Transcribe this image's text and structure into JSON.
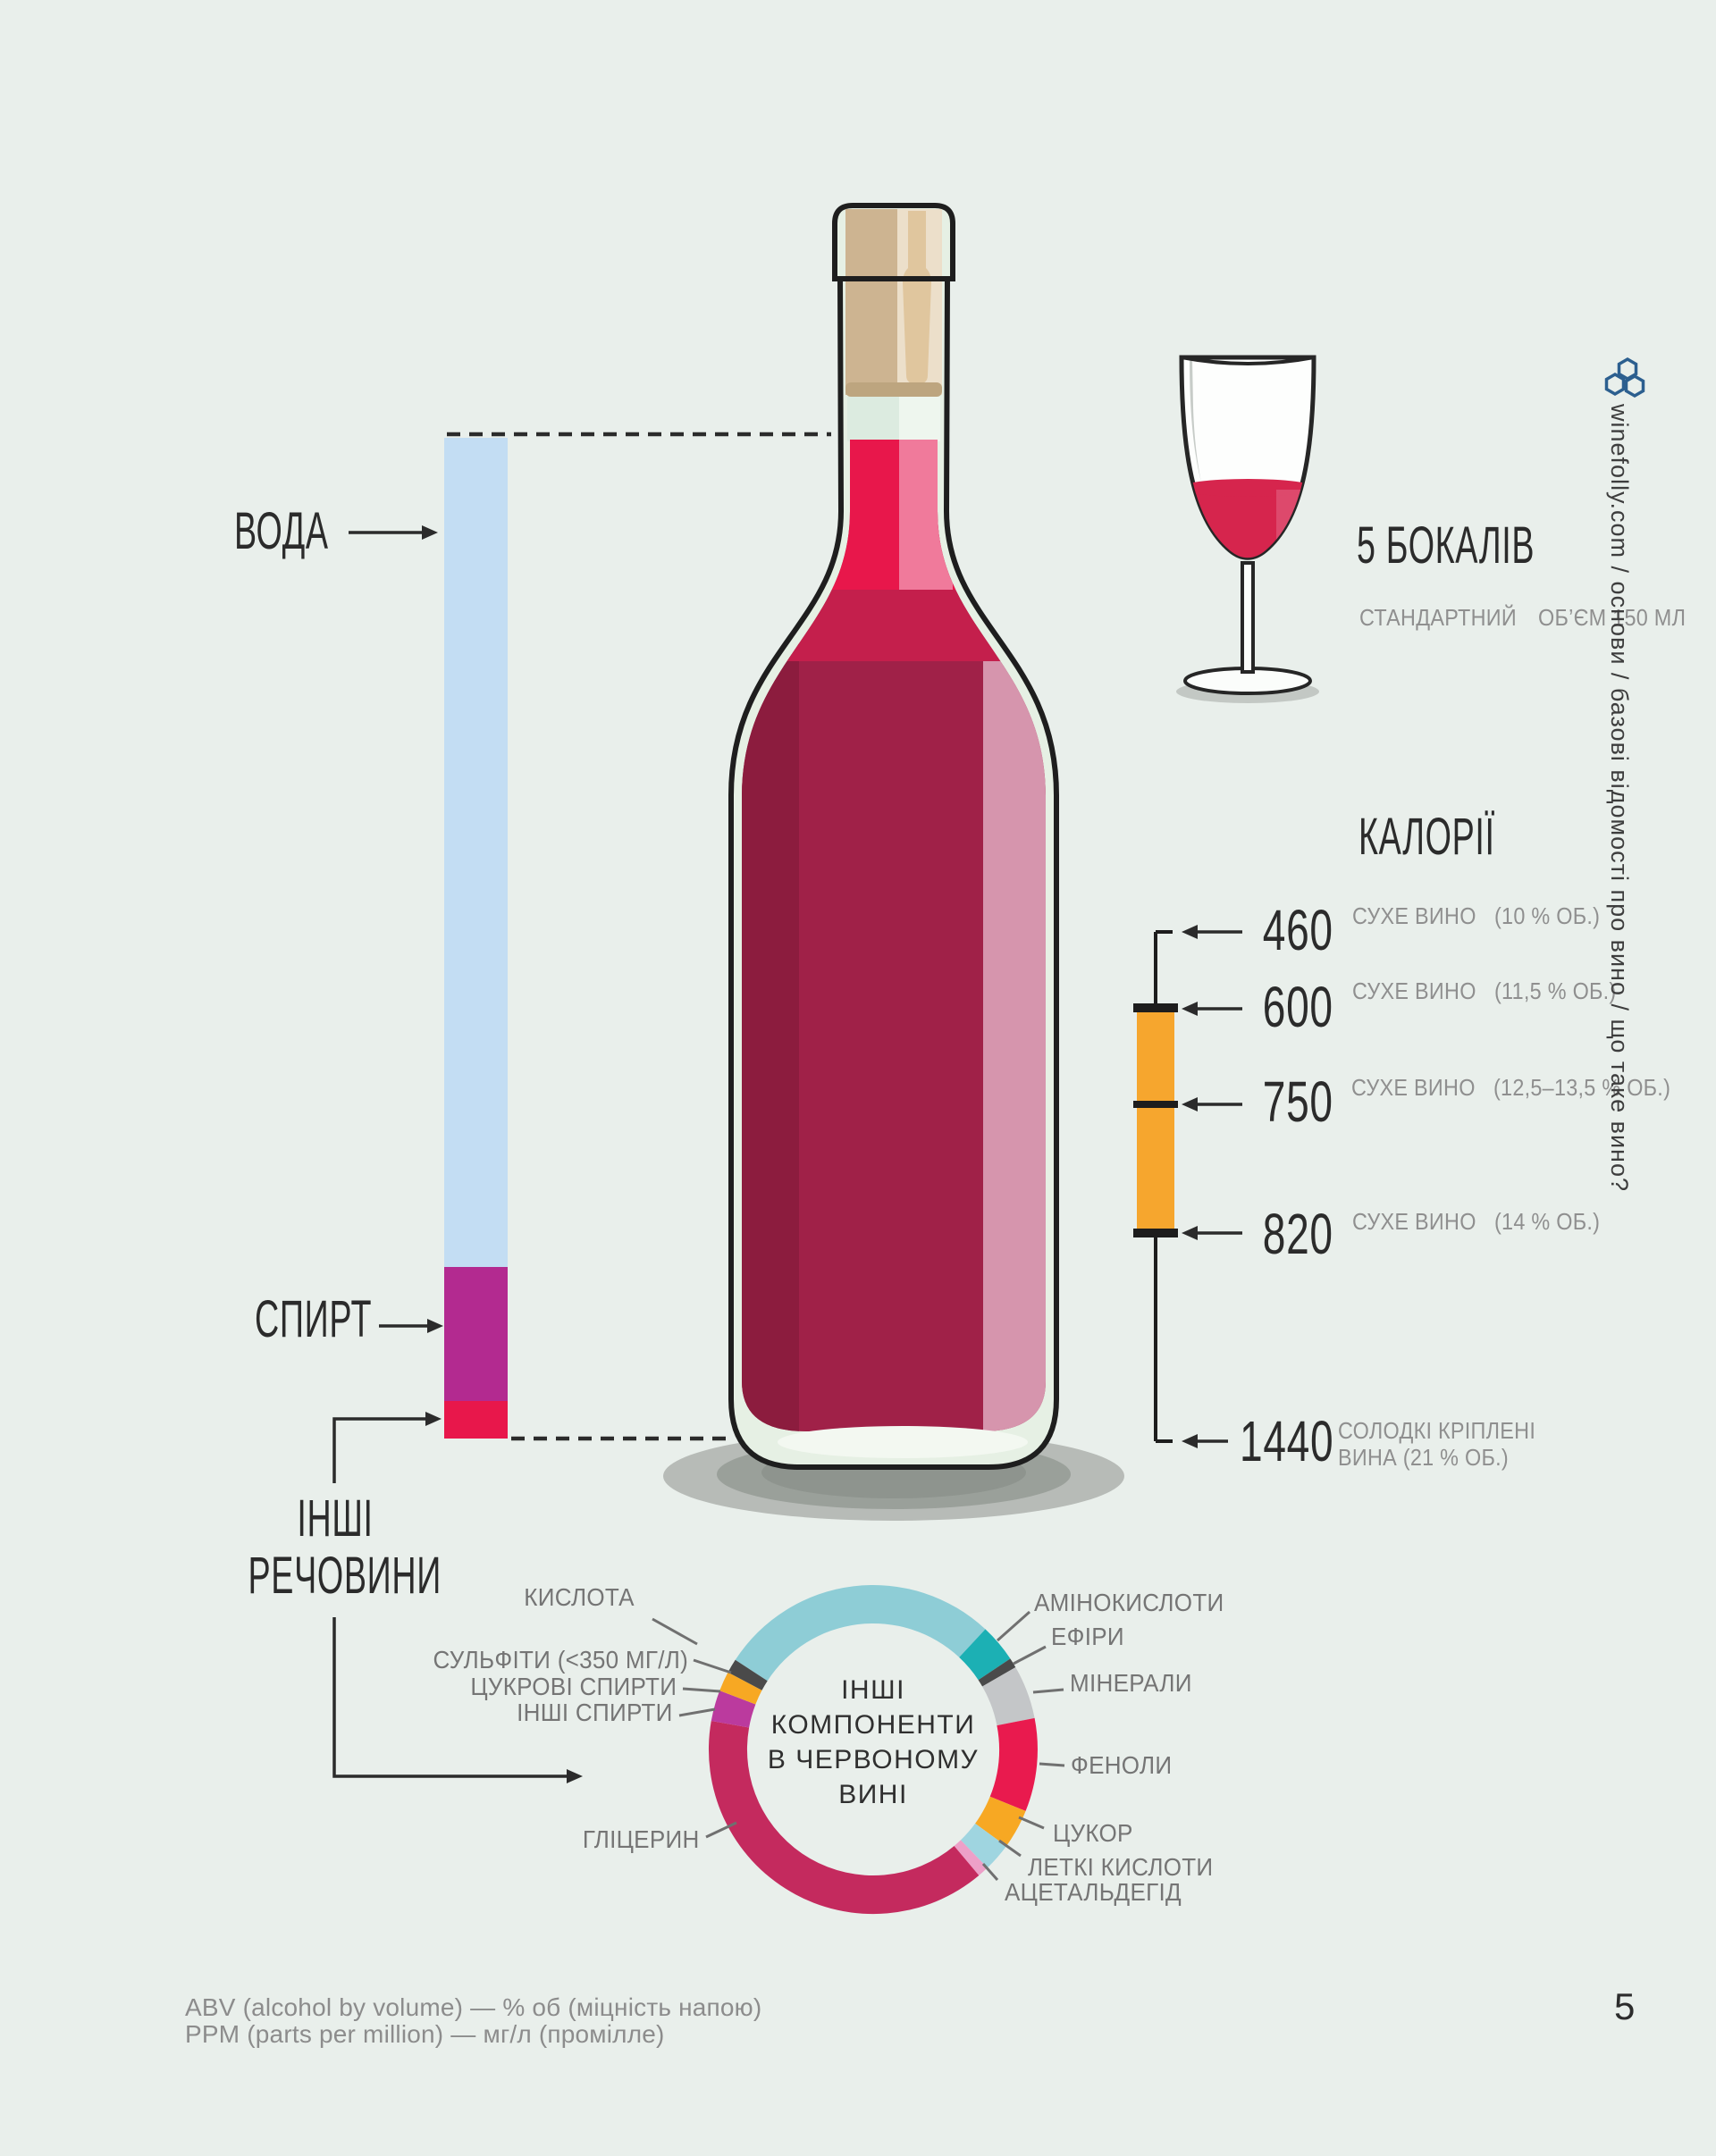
{
  "page": {
    "background": "#e9efeb",
    "page_number": "5",
    "side_vertical_text": "winefolly.com / основи / базові відомості про вино / що таке вино?"
  },
  "composition_bar": {
    "labels": {
      "water": "ВОДА",
      "alcohol": "СПИРТ",
      "other_line1": "ІНШІ",
      "other_line2": "РЕЧОВИНИ"
    },
    "colors": {
      "water": "#c3ddf3",
      "alcohol": "#b32a90",
      "other": "#e8174b"
    }
  },
  "glass_info": {
    "title": "5 БОКАЛІВ",
    "subtitle_line1": "СТАНДАРТНИЙ",
    "subtitle_line2": "ОБ’ЄМ 150 МЛ"
  },
  "calories": {
    "title": "КАЛОРІЇ",
    "bar_color": "#f6a62e",
    "entries": [
      {
        "value": "460",
        "label_line1": "СУХЕ ВИНО",
        "label_line2": "(10 % ОБ.)"
      },
      {
        "value": "600",
        "label_line1": "СУХЕ ВИНО",
        "label_line2": "(11,5 % ОБ.)"
      },
      {
        "value": "750",
        "label_line1": "СУХЕ ВИНО",
        "label_line2": "(12,5–13,5 % ОБ.)"
      },
      {
        "value": "820",
        "label_line1": "СУХЕ ВИНО",
        "label_line2": "(14 % ОБ.)"
      },
      {
        "value": "1440",
        "label_line1": "СОЛОДКІ КРІПЛЕНІ",
        "label_line2": "ВИНА (21 % ОБ.)"
      }
    ]
  },
  "chart_data": {
    "type": "pie",
    "subtype": "donut",
    "title": "ІНШІ КОМПОНЕНТИ В ЧЕРВОНОМУ ВИНІ",
    "center_lines": [
      "ІНШІ",
      "КОМПОНЕНТИ",
      "В ЧЕРВОНОМУ",
      "ВИНІ"
    ],
    "legend_position": "around",
    "start_angle_deg": 303,
    "segments": [
      {
        "label": "КИСЛОТА",
        "angle_deg": 100,
        "color": "#8ecdd6"
      },
      {
        "label": "АМІНОКИСЛОТИ",
        "angle_deg": 13.5,
        "color": "#1cb0b4"
      },
      {
        "label": "ЕФІРИ",
        "angle_deg": 3.5,
        "color": "#4a4a4a"
      },
      {
        "label": "МІНЕРАЛИ",
        "angle_deg": 19,
        "color": "#c4c6c8"
      },
      {
        "label": "ФЕНОЛИ",
        "angle_deg": 33,
        "color": "#e91a4e"
      },
      {
        "label": "ЦУКОР",
        "angle_deg": 14,
        "color": "#f7a823"
      },
      {
        "label": "ЛЕТКІ КИСЛОТИ",
        "angle_deg": 10,
        "color": "#9fd5e0"
      },
      {
        "label": "АЦЕТАЛЬДЕГІД",
        "angle_deg": 4,
        "color": "#eda0c8"
      },
      {
        "label": "ГЛІЦЕРИН",
        "angle_deg": 140,
        "color": "#c42a5e"
      },
      {
        "label": "ІНШІ СПИРТИ",
        "angle_deg": 11,
        "color": "#bb3a9e"
      },
      {
        "label": "ЦУКРОВІ СПИРТИ",
        "angle_deg": 7,
        "color": "#f7a823"
      },
      {
        "label": "СУЛЬФІТИ (<350 МГ/Л)",
        "angle_deg": 5,
        "color": "#4a4a4a"
      }
    ]
  },
  "footer": {
    "line1": "ABV (alcohol by volume) — % об (міцність напою)",
    "line2": "PPM (parts per million) — мг/л (промілле)"
  }
}
